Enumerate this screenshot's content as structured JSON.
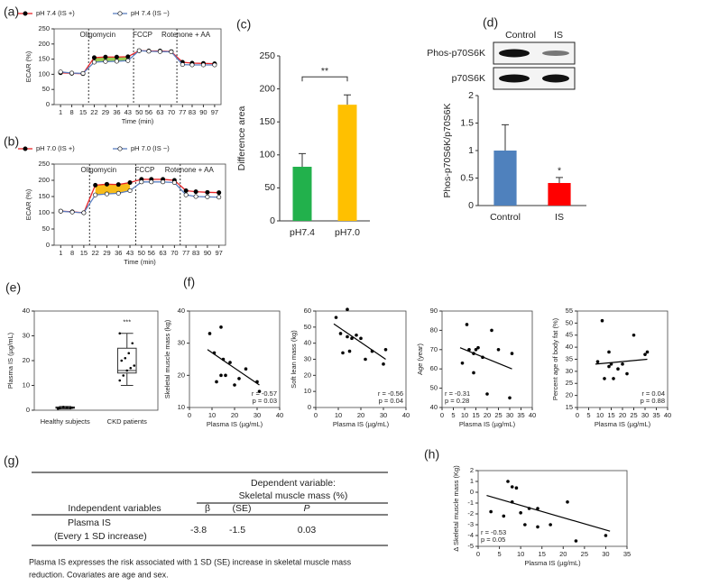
{
  "chart_data": [
    {
      "type": "line",
      "label": "(a)",
      "x": [
        1,
        8,
        15,
        22,
        29,
        36,
        43,
        50,
        56,
        63,
        70,
        77,
        83,
        90,
        97
      ],
      "xlim": [
        -3,
        101
      ],
      "xticks": [
        1,
        8,
        15,
        22,
        29,
        36,
        43,
        50,
        56,
        63,
        70,
        77,
        83,
        90,
        97
      ],
      "ylim": [
        0,
        250
      ],
      "yticks": [
        0,
        50,
        100,
        150,
        200,
        250
      ],
      "x_label": "Time (min)",
      "y_label": "ECAR (%)",
      "frame": "box",
      "fill_between": "#8dc63f",
      "series": [
        {
          "name": "pH 7.4 (IS +)",
          "color": "#e8262a",
          "marker": "#000000",
          "values": [
            105,
            103,
            102,
            155,
            157,
            157,
            158,
            178,
            177,
            177,
            175,
            140,
            137,
            136,
            135
          ]
        },
        {
          "name": "pH 7.4 (IS −)",
          "color": "#5b7fc0",
          "marker": "#ffffff",
          "values": [
            108,
            104,
            103,
            140,
            142,
            143,
            145,
            178,
            176,
            175,
            174,
            132,
            131,
            131,
            131
          ]
        }
      ],
      "annotations": [
        {
          "x": 18.5,
          "text": "Oligomycin"
        },
        {
          "x": 46.5,
          "text": "FCCP"
        },
        {
          "x": 73.5,
          "text": "Rotenone + AA"
        }
      ]
    },
    {
      "type": "line",
      "label": "(b)",
      "x": [
        1,
        8,
        15,
        22,
        29,
        36,
        43,
        50,
        56,
        63,
        70,
        77,
        83,
        90,
        97
      ],
      "xlim": [
        -3,
        101
      ],
      "xticks": [
        1,
        8,
        15,
        22,
        29,
        36,
        43,
        50,
        56,
        63,
        70,
        77,
        83,
        90,
        97
      ],
      "ylim": [
        0,
        250
      ],
      "yticks": [
        0,
        50,
        100,
        150,
        200,
        250
      ],
      "x_label": "Time (min)",
      "y_label": "ECAR (%)",
      "frame": "box",
      "fill_between": "#f7b500",
      "series": [
        {
          "name": "pH 7.0 (IS +)",
          "color": "#e8262a",
          "marker": "#000000",
          "values": [
            105,
            103,
            100,
            185,
            188,
            187,
            193,
            203,
            203,
            203,
            200,
            168,
            165,
            163,
            162
          ]
        },
        {
          "name": "pH 7.0 (IS −)",
          "color": "#5b7fc0",
          "marker": "#ffffff",
          "values": [
            105,
            102,
            100,
            155,
            158,
            160,
            168,
            195,
            195,
            195,
            193,
            155,
            150,
            149,
            148
          ]
        }
      ],
      "annotations": [
        {
          "x": 18.5,
          "text": "Oligomycin"
        },
        {
          "x": 46.5,
          "text": "FCCP"
        },
        {
          "x": 73.5,
          "text": "Rotenone + AA"
        }
      ]
    },
    {
      "type": "bar",
      "label": "(c)",
      "categories": [
        "pH7.4",
        "pH7.0"
      ],
      "values": [
        82,
        176
      ],
      "errors": [
        20,
        15
      ],
      "colors": [
        "#22b14c",
        "#ffc000"
      ],
      "ylim": [
        0,
        250
      ],
      "yticks": [
        0,
        50,
        100,
        150,
        200,
        250
      ],
      "y_label": "Difference  area",
      "frame": "axes",
      "bracket": "**"
    },
    {
      "type": "bar",
      "label": "(d)",
      "categories": [
        "Control",
        "IS"
      ],
      "values": [
        1.0,
        0.41
      ],
      "errors": [
        0.47,
        0.1
      ],
      "colors": [
        "#4f81bd",
        "#ff0000"
      ],
      "ylim": [
        0,
        2
      ],
      "yticks": [
        0,
        0.5,
        1,
        1.5,
        2
      ],
      "y_label": "Phos-p70S6K/p70S6K",
      "frame": "axes",
      "star_labels": [
        null,
        "*"
      ],
      "blot_lanes": [
        "Control",
        "IS"
      ],
      "blot_rows": [
        "Phos-p70S6K",
        "p70S6K"
      ]
    },
    {
      "type": "box",
      "label": "(e)",
      "categories": [
        "Healthy subjects",
        "CKD patients"
      ],
      "ylim": [
        0,
        40
      ],
      "yticks": [
        0,
        10,
        20,
        30,
        40
      ],
      "y_label": "Plasma IS (µg/mL)",
      "frame": "box",
      "star_labels": [
        null,
        "***"
      ],
      "boxes": [
        {
          "min": 0.5,
          "q1": 0.8,
          "median": 1,
          "q3": 1.3,
          "max": 1.5,
          "points": [
            0.6,
            0.9,
            1.1,
            1.3,
            0.8,
            1.0
          ]
        },
        {
          "min": 10,
          "q1": 15,
          "median": 16,
          "q3": 25,
          "max": 31,
          "points": [
            31,
            27,
            23,
            21,
            20,
            18,
            17,
            16,
            14,
            12
          ]
        }
      ]
    },
    {
      "type": "scatter",
      "label": "(f)",
      "x": [
        9,
        11,
        12,
        14,
        14,
        15,
        16,
        18,
        20,
        22,
        25,
        30,
        31
      ],
      "values": [
        33,
        27,
        18,
        35,
        20,
        25,
        20,
        24,
        17,
        19,
        22,
        18,
        15
      ],
      "xlim": [
        0,
        40
      ],
      "xticks": [
        0,
        10,
        20,
        30,
        40
      ],
      "ylim": [
        10,
        40
      ],
      "yticks": [
        10,
        20,
        30,
        40
      ],
      "x_label": "Plasma IS (µg/mL)",
      "y_label": "Skeletal muscle mass (kg)",
      "frame": "box",
      "fit": {
        "x": [
          8,
          31
        ],
        "values": [
          28,
          17
        ]
      },
      "annotations": [
        "r = -0.57",
        "p = 0.03"
      ],
      "annotation_corner": "lower right"
    },
    {
      "type": "scatter",
      "x": [
        9,
        11,
        12,
        14,
        14,
        15,
        16,
        18,
        20,
        22,
        25,
        30,
        31
      ],
      "values": [
        56,
        46,
        34,
        61,
        44,
        35,
        43,
        45,
        43,
        30,
        35,
        27,
        36
      ],
      "xlim": [
        0,
        40
      ],
      "xticks": [
        0,
        10,
        20,
        30,
        40
      ],
      "ylim": [
        0,
        60
      ],
      "yticks": [
        0,
        10,
        20,
        30,
        40,
        50,
        60
      ],
      "x_label": "Plasma IS (µg/mL)",
      "y_label": "Soft lean mass (kg)",
      "frame": "box",
      "fit": {
        "x": [
          8,
          31
        ],
        "values": [
          52,
          30
        ]
      },
      "annotations": [
        "r = -0.56",
        "p = 0.04"
      ],
      "annotation_corner": "lower right"
    },
    {
      "type": "scatter",
      "x": [
        9,
        11,
        12,
        14,
        14,
        15,
        16,
        18,
        20,
        22,
        25,
        30,
        31
      ],
      "values": [
        63,
        83,
        70,
        68,
        58,
        70,
        71,
        66,
        47,
        80,
        70,
        45,
        68
      ],
      "xlim": [
        0,
        40
      ],
      "xticks": [
        0,
        5,
        10,
        15,
        20,
        25,
        30,
        35,
        40
      ],
      "ylim": [
        40,
        90
      ],
      "yticks": [
        40,
        50,
        60,
        70,
        80,
        90
      ],
      "x_label": "Plasma IS (µg/mL)",
      "y_label": "Age (year)",
      "frame": "box",
      "fit": {
        "x": [
          8,
          31
        ],
        "values": [
          71,
          60
        ]
      },
      "annotations": [
        "r = -0.31",
        "p = 0.28"
      ],
      "annotation_corner": "lower left"
    },
    {
      "type": "scatter",
      "x": [
        9,
        11,
        12,
        14,
        14,
        15,
        16,
        18,
        20,
        22,
        25,
        30,
        31
      ],
      "values": [
        34,
        51,
        27,
        38,
        32,
        33,
        27,
        31,
        33,
        29,
        45,
        37,
        38
      ],
      "xlim": [
        0,
        40
      ],
      "xticks": [
        0,
        5,
        10,
        15,
        20,
        25,
        30,
        35,
        40
      ],
      "ylim": [
        15,
        55
      ],
      "yticks": [
        15,
        20,
        25,
        30,
        35,
        40,
        45,
        50,
        55
      ],
      "x_label": "Plasma IS (µg/mL)",
      "y_label": "Percent age of body fat (%)",
      "frame": "box",
      "fit": {
        "x": [
          8,
          31
        ],
        "values": [
          33,
          35
        ]
      },
      "annotations": [
        "r = 0.04",
        "p = 0.88"
      ],
      "annotation_corner": "lower right"
    },
    {
      "type": "scatter",
      "label": "(h)",
      "x": [
        3,
        6,
        7,
        8,
        9,
        8,
        10,
        11,
        12,
        14,
        14,
        17,
        21,
        23,
        30
      ],
      "values": [
        -1.8,
        -2.2,
        1.0,
        0.5,
        0.4,
        -0.9,
        -1.9,
        -3.0,
        -1.5,
        -1.5,
        -3.2,
        -3.0,
        -0.9,
        -4.5,
        -4.0
      ],
      "xlim": [
        0,
        35
      ],
      "xticks": [
        0,
        5,
        10,
        15,
        20,
        25,
        30,
        35
      ],
      "ylim": [
        -5,
        2
      ],
      "yticks": [
        -5,
        -4,
        -3,
        -2,
        -1,
        0,
        1,
        2
      ],
      "x_label": "Plasma IS  (µg/mL)",
      "y_label": "Δ Skeletal muscle mass (Kg)",
      "frame": "box",
      "fit": {
        "x": [
          2,
          31
        ],
        "values": [
          -0.3,
          -3.6
        ]
      },
      "annotations": [
        "r = -0.53",
        "p = 0.05"
      ],
      "annotation_corner": "lower left"
    }
  ],
  "table": {
    "label": "(g)",
    "dependent": "Dependent variable:",
    "dependent_name": "Skeletal muscle mass (%)",
    "header": [
      "Independent variables",
      "β",
      "(SE)",
      "P"
    ],
    "row": {
      "name": "Plasma IS",
      "detail": "(Every 1 SD  increase)",
      "values": [
        -3.8,
        -1.5,
        0.03
      ]
    },
    "note": [
      "Plasma IS expresses the risk associated with 1 SD (SE) increase in skeletal muscle mass",
      "reduction.     Covariates are age and sex."
    ]
  }
}
